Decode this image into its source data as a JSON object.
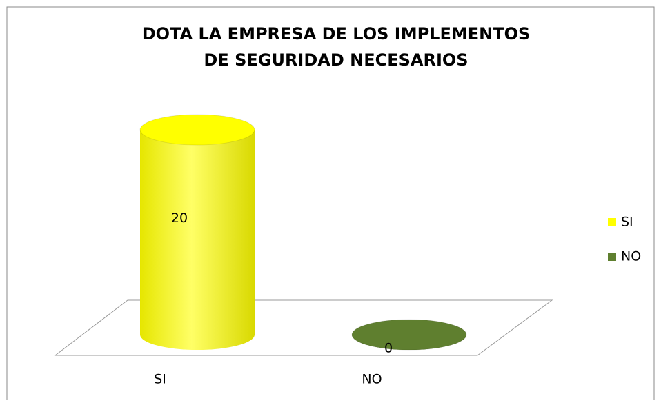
{
  "chart_data": {
    "type": "bar3d",
    "title": "DOTA LA EMPRESA DE LOS IMPLEMENTOS DE SEGURIDAD NECESARIOS",
    "categories": [
      "SI",
      "NO"
    ],
    "values": [
      20,
      0
    ],
    "colors": [
      "#ffff00",
      "#5f7f2f"
    ],
    "legend": "right"
  }
}
